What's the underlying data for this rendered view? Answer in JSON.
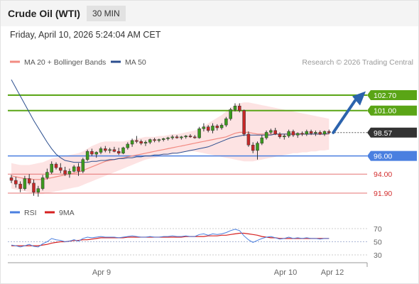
{
  "header": {
    "title": "Crude Oil (WTI)",
    "timeframe": "30 MIN"
  },
  "datetime": "Friday, April 10, 2026 5:24:04 AM CET",
  "legend": {
    "ma20": {
      "label": "MA 20 + Bollinger Bands",
      "color": "#f28b82"
    },
    "ma50": {
      "label": "MA 50",
      "color": "#2c4f8f"
    }
  },
  "copyright": "Research © 2026 Trading Central",
  "colors": {
    "up": "#3b9b1e",
    "down": "#c62828",
    "resistance": "#5aa516",
    "pivot": "#4a7fe0",
    "support": "#e57373",
    "band": "#fde3e3",
    "arrow": "#2b63ad"
  },
  "levels": [
    {
      "value": 102.7,
      "label": "102.70",
      "kind": "resistance"
    },
    {
      "value": 101.0,
      "label": "101.00",
      "kind": "resistance"
    },
    {
      "value": 98.57,
      "label": "98.57",
      "kind": "last"
    },
    {
      "value": 96.0,
      "label": "96.00",
      "kind": "pivot"
    },
    {
      "value": 94.0,
      "label": "94.00",
      "kind": "support"
    },
    {
      "value": 91.9,
      "label": "91.90",
      "kind": "support"
    }
  ],
  "x_labels": [
    "Apr 9",
    "Apr 10",
    "Apr 12"
  ],
  "rsi_panel": {
    "rsi_label": "RSI",
    "ma_label": "9MA",
    "rsi_color": "#4a7fe0",
    "ma_color": "#d62020",
    "ticks": [
      "70",
      "50",
      "30"
    ]
  },
  "chart_data": {
    "type": "candlestick",
    "y_range": [
      91.0,
      105.0
    ],
    "candles": [
      [
        93.6,
        93.9,
        93.0,
        93.3
      ],
      [
        93.3,
        93.7,
        92.5,
        92.9
      ],
      [
        92.9,
        93.2,
        92.0,
        92.4
      ],
      [
        92.4,
        93.8,
        92.2,
        93.5
      ],
      [
        93.5,
        94.0,
        92.8,
        93.0
      ],
      [
        93.0,
        93.4,
        91.6,
        92.0
      ],
      [
        92.0,
        92.7,
        91.5,
        92.4
      ],
      [
        92.4,
        93.9,
        92.2,
        93.6
      ],
      [
        93.6,
        94.6,
        93.4,
        94.2
      ],
      [
        94.2,
        95.4,
        94.0,
        95.1
      ],
      [
        95.1,
        95.3,
        94.5,
        94.7
      ],
      [
        94.7,
        95.2,
        94.1,
        94.4
      ],
      [
        94.4,
        94.8,
        93.8,
        94.0
      ],
      [
        94.0,
        94.6,
        93.6,
        94.3
      ],
      [
        94.3,
        95.0,
        94.2,
        94.8
      ],
      [
        94.8,
        95.2,
        93.8,
        94.3
      ],
      [
        94.3,
        95.8,
        94.1,
        95.6
      ],
      [
        95.6,
        96.7,
        95.4,
        96.5
      ],
      [
        96.5,
        96.8,
        96.0,
        96.2
      ],
      [
        96.2,
        96.5,
        95.8,
        96.4
      ],
      [
        96.4,
        97.0,
        96.2,
        96.8
      ],
      [
        96.8,
        97.1,
        96.4,
        96.6
      ],
      [
        96.6,
        96.9,
        96.3,
        96.7
      ],
      [
        96.7,
        97.0,
        96.4,
        96.5
      ],
      [
        96.5,
        96.9,
        96.1,
        96.3
      ],
      [
        96.3,
        97.0,
        96.2,
        96.9
      ],
      [
        96.9,
        97.5,
        96.7,
        97.3
      ],
      [
        97.3,
        97.9,
        97.0,
        97.7
      ],
      [
        97.7,
        98.2,
        97.4,
        97.6
      ],
      [
        97.6,
        97.8,
        97.2,
        97.4
      ],
      [
        97.4,
        97.7,
        97.1,
        97.5
      ],
      [
        97.5,
        97.9,
        97.3,
        97.8
      ],
      [
        97.8,
        98.0,
        97.5,
        97.7
      ],
      [
        97.7,
        97.9,
        97.5,
        97.8
      ],
      [
        97.8,
        98.0,
        97.6,
        97.9
      ],
      [
        97.9,
        98.1,
        97.7,
        98.0
      ],
      [
        98.0,
        98.3,
        97.8,
        98.1
      ],
      [
        98.1,
        98.3,
        97.9,
        98.0
      ],
      [
        98.0,
        98.2,
        97.8,
        98.1
      ],
      [
        98.1,
        98.3,
        97.9,
        98.2
      ],
      [
        98.2,
        98.4,
        98.0,
        98.1
      ],
      [
        98.1,
        98.3,
        97.9,
        98.0
      ],
      [
        98.0,
        99.2,
        97.9,
        99.0
      ],
      [
        99.0,
        99.6,
        98.7,
        99.2
      ],
      [
        99.2,
        99.4,
        98.6,
        98.8
      ],
      [
        98.8,
        99.6,
        98.5,
        99.3
      ],
      [
        99.3,
        99.5,
        98.8,
        99.1
      ],
      [
        99.1,
        99.6,
        98.9,
        99.4
      ],
      [
        99.4,
        100.3,
        99.2,
        100.1
      ],
      [
        100.1,
        101.3,
        99.9,
        101.1
      ],
      [
        101.1,
        101.8,
        100.9,
        101.5
      ],
      [
        101.5,
        101.8,
        100.8,
        101.0
      ],
      [
        101.0,
        101.1,
        98.2,
        98.4
      ],
      [
        98.4,
        98.7,
        97.0,
        97.2
      ],
      [
        97.2,
        97.5,
        96.3,
        96.6
      ],
      [
        96.6,
        97.6,
        95.6,
        97.4
      ],
      [
        97.4,
        98.3,
        97.2,
        98.0
      ],
      [
        98.0,
        98.8,
        97.8,
        98.6
      ],
      [
        98.6,
        99.0,
        98.4,
        98.8
      ],
      [
        98.8,
        99.1,
        98.3,
        98.4
      ],
      [
        98.4,
        98.6,
        97.9,
        98.1
      ],
      [
        98.1,
        98.4,
        97.8,
        98.2
      ],
      [
        98.2,
        98.9,
        98.0,
        98.7
      ],
      [
        98.7,
        98.9,
        98.1,
        98.3
      ],
      [
        98.3,
        98.6,
        98.0,
        98.5
      ],
      [
        98.5,
        98.7,
        98.2,
        98.4
      ],
      [
        98.4,
        98.9,
        98.2,
        98.7
      ],
      [
        98.7,
        98.9,
        98.3,
        98.5
      ],
      [
        98.5,
        98.8,
        98.2,
        98.6
      ],
      [
        98.6,
        98.8,
        98.3,
        98.4
      ],
      [
        98.4,
        98.8,
        98.2,
        98.7
      ],
      [
        98.7,
        98.9,
        98.4,
        98.57
      ]
    ],
    "ma20": [
      93.8,
      93.7,
      93.6,
      93.5,
      93.5,
      93.4,
      93.4,
      93.4,
      93.5,
      93.6,
      93.7,
      93.8,
      93.9,
      94.0,
      94.1,
      94.2,
      94.4,
      94.6,
      94.8,
      95.0,
      95.2,
      95.4,
      95.5,
      95.6,
      95.7,
      95.8,
      95.9,
      96.0,
      96.1,
      96.2,
      96.3,
      96.4,
      96.5,
      96.6,
      96.7,
      96.8,
      96.9,
      97.0,
      97.1,
      97.2,
      97.3,
      97.4,
      97.5,
      97.6,
      97.7,
      97.8,
      97.9,
      98.0,
      98.1,
      98.3,
      98.5,
      98.6,
      98.6,
      98.6,
      98.5,
      98.4,
      98.4,
      98.4,
      98.4,
      98.4,
      98.4,
      98.4,
      98.4,
      98.4,
      98.4,
      98.4,
      98.4,
      98.4,
      98.4,
      98.4,
      98.4,
      98.4
    ],
    "bb_upper": [
      95.2,
      95.1,
      95.0,
      95.0,
      95.0,
      95.1,
      95.2,
      95.3,
      95.5,
      95.7,
      95.8,
      95.9,
      96.0,
      96.1,
      96.2,
      96.3,
      96.5,
      96.8,
      97.1,
      97.3,
      97.5,
      97.6,
      97.6,
      97.6,
      97.6,
      97.6,
      97.7,
      97.8,
      97.9,
      98.0,
      98.1,
      98.1,
      98.1,
      98.2,
      98.2,
      98.3,
      98.4,
      98.4,
      98.5,
      98.6,
      98.7,
      98.8,
      99.0,
      99.3,
      99.6,
      99.9,
      100.2,
      100.5,
      100.9,
      101.3,
      101.6,
      101.8,
      101.9,
      101.9,
      101.8,
      101.7,
      101.6,
      101.5,
      101.4,
      101.3,
      101.2,
      101.1,
      101.0,
      100.9,
      100.8,
      100.7,
      100.6,
      100.5,
      100.4,
      100.3,
      100.2,
      100.1
    ],
    "bb_lower": [
      92.4,
      92.3,
      92.2,
      92.1,
      92.0,
      91.9,
      91.8,
      91.8,
      91.9,
      92.0,
      92.1,
      92.2,
      92.3,
      92.4,
      92.5,
      92.6,
      92.8,
      93.0,
      93.2,
      93.4,
      93.6,
      93.8,
      94.0,
      94.2,
      94.4,
      94.6,
      94.8,
      95.0,
      95.2,
      95.4,
      95.6,
      95.7,
      95.8,
      95.9,
      96.0,
      96.1,
      96.2,
      96.3,
      96.4,
      96.5,
      96.5,
      96.5,
      96.4,
      96.3,
      96.2,
      96.1,
      96.0,
      95.9,
      95.8,
      95.7,
      95.6,
      95.5,
      95.4,
      95.4,
      95.4,
      95.5,
      95.6,
      95.7,
      95.8,
      95.9,
      96.0,
      96.1,
      96.2,
      96.3,
      96.3,
      96.4,
      96.4,
      96.5,
      96.5,
      96.6,
      96.6,
      96.7
    ],
    "ma50": [
      104.4,
      103.5,
      102.6,
      101.7,
      100.8,
      99.9,
      99.1,
      98.3,
      97.5,
      96.8,
      96.2,
      95.8,
      95.5,
      95.4,
      95.3,
      95.3,
      95.3,
      95.3,
      95.4,
      95.4,
      95.5,
      95.5,
      95.6,
      95.6,
      95.7,
      95.7,
      95.8,
      95.8,
      95.9,
      95.9,
      96.0,
      96.0,
      96.1,
      96.1,
      96.2,
      96.2,
      96.3,
      96.3,
      96.4,
      96.5,
      96.6,
      96.7,
      96.8,
      96.9,
      97.0,
      97.2,
      97.4,
      97.6,
      97.8,
      98.0,
      98.1,
      98.2,
      98.3,
      98.3,
      98.3,
      98.3,
      98.3,
      98.3,
      98.3,
      98.4,
      98.4,
      98.4,
      98.4,
      98.4,
      98.4,
      98.4,
      98.4,
      98.4,
      98.4,
      98.4,
      98.4,
      98.5
    ],
    "rsi": [
      45,
      44,
      42,
      44,
      46,
      43,
      42,
      47,
      50,
      55,
      53,
      52,
      50,
      51,
      53,
      51,
      55,
      57,
      56,
      57,
      58,
      57,
      57,
      57,
      56,
      57,
      58,
      59,
      58,
      57,
      57,
      58,
      57,
      57,
      58,
      58,
      59,
      58,
      58,
      59,
      58,
      58,
      61,
      62,
      60,
      62,
      61,
      62,
      64,
      67,
      69,
      67,
      59,
      53,
      49,
      52,
      55,
      57,
      58,
      56,
      54,
      55,
      57,
      55,
      56,
      55,
      56,
      55,
      55,
      54,
      55,
      55
    ],
    "rsi_ma": [
      44,
      44,
      44,
      44,
      44,
      44,
      44,
      45,
      46,
      48,
      49,
      50,
      50,
      51,
      52,
      52,
      53,
      53,
      54,
      55,
      56,
      56,
      56,
      56,
      56,
      56,
      57,
      57,
      57,
      57,
      57,
      57,
      57,
      57,
      57,
      57,
      57,
      57,
      57,
      58,
      58,
      58,
      58,
      58,
      59,
      59,
      59,
      60,
      60,
      61,
      62,
      63,
      63,
      62,
      61,
      60,
      58,
      57,
      56,
      56,
      55,
      55,
      55,
      55,
      55,
      55,
      55,
      55,
      55,
      55,
      55,
      55
    ],
    "rsi_ylim": [
      20,
      80
    ]
  }
}
